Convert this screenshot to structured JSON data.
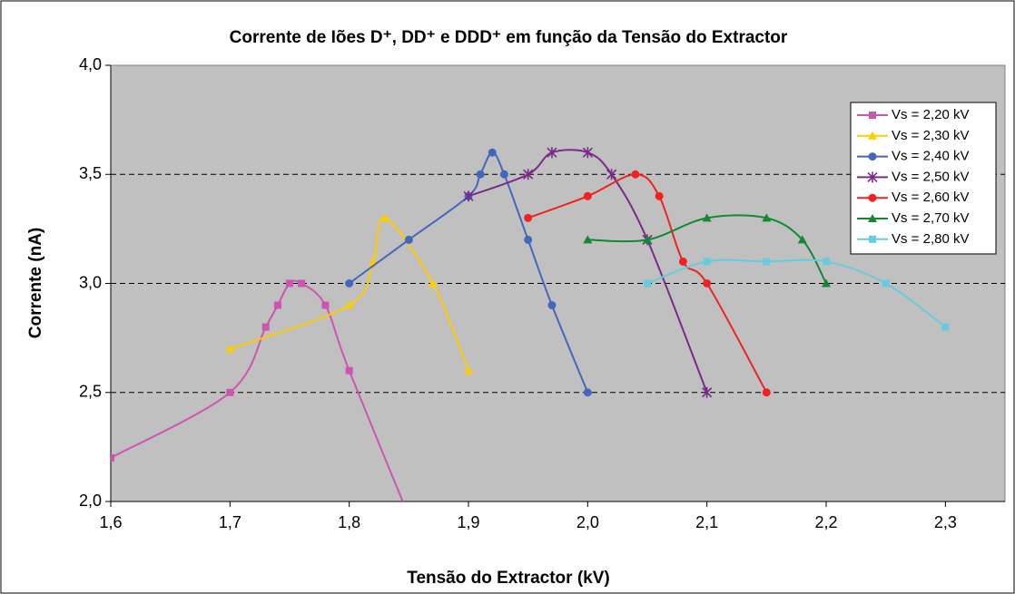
{
  "chart_data": {
    "type": "line",
    "title": "Corrente de Iões D⁺, DD⁺ e DDD⁺ em função da Tensão do Extractor",
    "x_label": "Tensão do Extractor (kV)",
    "y_label": "Corrente (nA)",
    "xlim": [
      1.6,
      2.35
    ],
    "ylim": [
      2.0,
      4.0
    ],
    "xticks": [
      {
        "value": 1.6,
        "label": "1,6"
      },
      {
        "value": 1.7,
        "label": "1,7"
      },
      {
        "value": 1.8,
        "label": "1,8"
      },
      {
        "value": 1.9,
        "label": "1,9"
      },
      {
        "value": 2.0,
        "label": "2,0"
      },
      {
        "value": 2.1,
        "label": "2,1"
      },
      {
        "value": 2.2,
        "label": "2,2"
      },
      {
        "value": 2.3,
        "label": "2,3"
      }
    ],
    "yticks": [
      {
        "value": 2.0,
        "label": "2,0"
      },
      {
        "value": 2.5,
        "label": "2,5"
      },
      {
        "value": 3.0,
        "label": "3,0"
      },
      {
        "value": 3.5,
        "label": "3,5"
      },
      {
        "value": 4.0,
        "label": "4,0"
      }
    ],
    "grid": true,
    "smooth": true,
    "legend": "upper right",
    "series": [
      {
        "name": "Vs = 2,20 kV",
        "color": "#cc55b0",
        "marker": "square",
        "x": [
          1.6,
          1.7,
          1.73,
          1.74,
          1.75,
          1.76,
          1.78,
          1.8,
          1.86
        ],
        "values": [
          2.2,
          2.5,
          2.8,
          2.9,
          3.0,
          3.0,
          2.9,
          2.6,
          1.8
        ]
      },
      {
        "name": "Vs = 2,30 kV",
        "color": "#ffcc00",
        "marker": "triangle",
        "x": [
          1.7,
          1.8,
          1.82,
          1.83,
          1.87,
          1.9
        ],
        "values": [
          2.7,
          2.9,
          3.1,
          3.3,
          3.0,
          2.6
        ]
      },
      {
        "name": "Vs = 2,40 kV",
        "color": "#4466bb",
        "marker": "circle",
        "x": [
          1.8,
          1.85,
          1.9,
          1.91,
          1.92,
          1.93,
          1.95,
          1.97,
          2.0
        ],
        "values": [
          3.0,
          3.2,
          3.4,
          3.5,
          3.6,
          3.5,
          3.2,
          2.9,
          2.5
        ]
      },
      {
        "name": "Vs = 2,50 kV",
        "color": "#7a2a88",
        "marker": "star",
        "x": [
          1.9,
          1.95,
          1.97,
          2.0,
          2.02,
          2.05,
          2.1
        ],
        "values": [
          3.4,
          3.5,
          3.6,
          3.6,
          3.5,
          3.2,
          2.5
        ]
      },
      {
        "name": "Vs = 2,60 kV",
        "color": "#ee2222",
        "marker": "circle",
        "x": [
          1.95,
          2.0,
          2.04,
          2.06,
          2.08,
          2.1,
          2.15
        ],
        "values": [
          3.3,
          3.4,
          3.5,
          3.4,
          3.1,
          3.0,
          2.5
        ]
      },
      {
        "name": "Vs = 2,70 kV",
        "color": "#118833",
        "marker": "triangle",
        "x": [
          2.0,
          2.05,
          2.1,
          2.15,
          2.18,
          2.2
        ],
        "values": [
          3.2,
          3.2,
          3.3,
          3.3,
          3.2,
          3.0
        ]
      },
      {
        "name": "Vs = 2,80 kV",
        "color": "#66ccdd",
        "marker": "square",
        "x": [
          2.05,
          2.1,
          2.15,
          2.2,
          2.25,
          2.3
        ],
        "values": [
          3.0,
          3.1,
          3.1,
          3.1,
          3.0,
          2.8
        ]
      }
    ]
  }
}
